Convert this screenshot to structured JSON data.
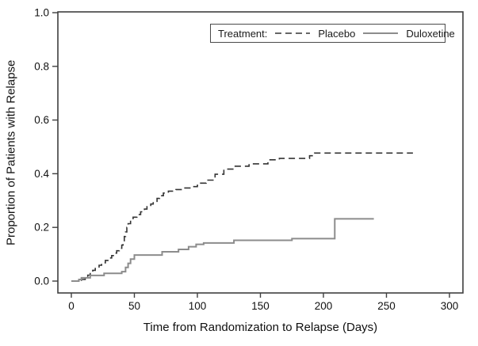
{
  "figure": {
    "background_color": "#ffffff",
    "frame_color": "#3f3f3f",
    "text_color": "#111111",
    "legend": {
      "title": "Treatment:",
      "entries": [
        {
          "label": "Placebo",
          "line_style": "dashed",
          "color": "#333333"
        },
        {
          "label": "Duloxetine",
          "line_style": "solid",
          "color": "#8c8c8c"
        }
      ]
    }
  },
  "chart_data": {
    "type": "line",
    "subtype": "kaplan-meier-step",
    "title": "",
    "xlabel": "Time from Randomization to Relapse (Days)",
    "ylabel": "Proportion of Patients with Relapse",
    "xlim": [
      0,
      300
    ],
    "ylim": [
      0,
      1.0
    ],
    "x_ticks": [
      0,
      50,
      100,
      150,
      200,
      250,
      300
    ],
    "y_ticks": [
      0.0,
      0.2,
      0.4,
      0.6,
      0.8,
      1.0
    ],
    "grid": false,
    "legend_position": "top-right-inside",
    "series": [
      {
        "name": "Placebo",
        "line_style": "dashed",
        "color": "#333333",
        "points": [
          [
            0,
            0
          ],
          [
            8,
            0.006
          ],
          [
            11,
            0.012
          ],
          [
            13,
            0.022
          ],
          [
            15,
            0.031
          ],
          [
            17,
            0.04
          ],
          [
            19,
            0.05
          ],
          [
            22,
            0.059
          ],
          [
            24,
            0.068
          ],
          [
            27,
            0.077
          ],
          [
            29,
            0.086
          ],
          [
            32,
            0.095
          ],
          [
            34,
            0.104
          ],
          [
            36,
            0.113
          ],
          [
            38,
            0.122
          ],
          [
            40,
            0.134
          ],
          [
            41,
            0.15
          ],
          [
            42,
            0.166
          ],
          [
            43,
            0.183
          ],
          [
            44,
            0.2
          ],
          [
            45,
            0.214
          ],
          [
            47,
            0.227
          ],
          [
            49,
            0.238
          ],
          [
            52,
            0.248
          ],
          [
            55,
            0.258
          ],
          [
            58,
            0.268
          ],
          [
            60,
            0.277
          ],
          [
            63,
            0.287
          ],
          [
            65,
            0.297
          ],
          [
            68,
            0.308
          ],
          [
            70,
            0.318
          ],
          [
            73,
            0.328
          ],
          [
            77,
            0.335
          ],
          [
            83,
            0.341
          ],
          [
            89,
            0.347
          ],
          [
            95,
            0.352
          ],
          [
            100,
            0.357
          ],
          [
            102,
            0.365
          ],
          [
            107,
            0.376
          ],
          [
            114,
            0.398
          ],
          [
            121,
            0.417
          ],
          [
            129,
            0.428
          ],
          [
            141,
            0.437
          ],
          [
            156,
            0.452
          ],
          [
            165,
            0.457
          ],
          [
            189,
            0.467
          ],
          [
            193,
            0.477
          ],
          [
            271,
            0.477
          ]
        ]
      },
      {
        "name": "Duloxetine",
        "line_style": "solid",
        "color": "#8c8c8c",
        "points": [
          [
            0,
            0
          ],
          [
            6,
            0.006
          ],
          [
            8,
            0.012
          ],
          [
            15,
            0.021
          ],
          [
            26,
            0.029
          ],
          [
            40,
            0.035
          ],
          [
            43,
            0.051
          ],
          [
            45,
            0.066
          ],
          [
            47,
            0.082
          ],
          [
            50,
            0.097
          ],
          [
            72,
            0.109
          ],
          [
            85,
            0.118
          ],
          [
            93,
            0.128
          ],
          [
            99,
            0.137
          ],
          [
            105,
            0.142
          ],
          [
            129,
            0.152
          ],
          [
            175,
            0.158
          ],
          [
            209,
            0.232
          ],
          [
            240,
            0.232
          ]
        ]
      }
    ]
  }
}
